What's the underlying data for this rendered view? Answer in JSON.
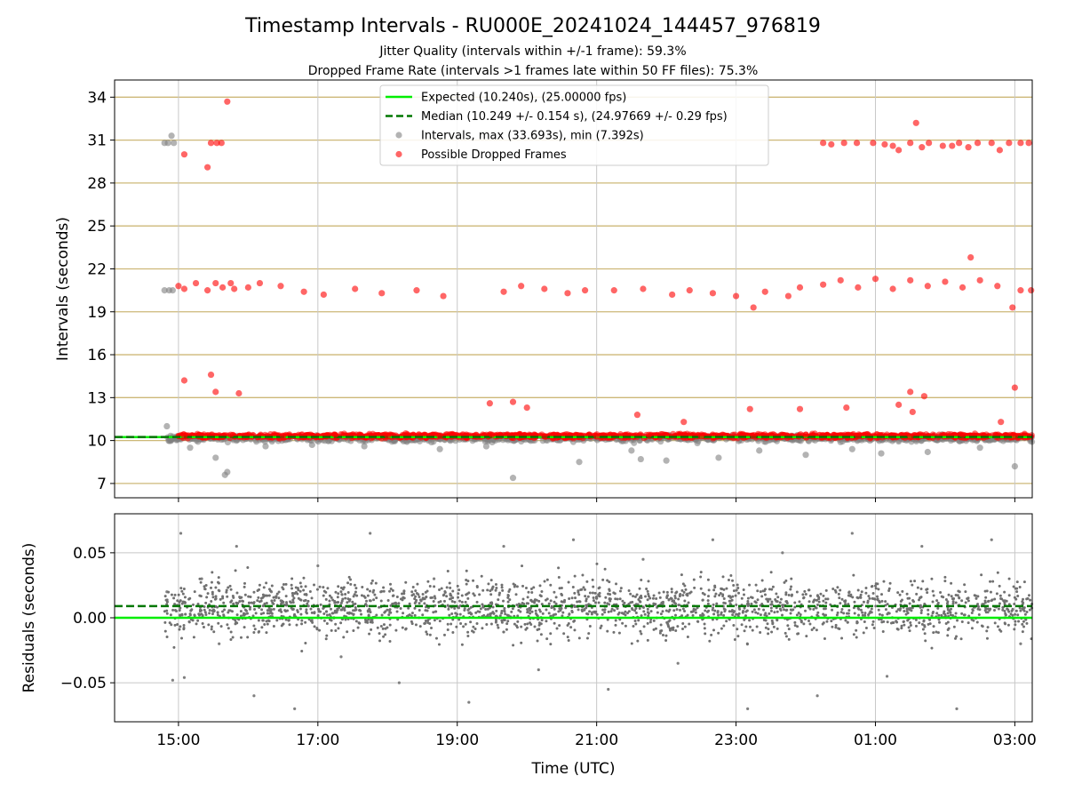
{
  "chart_data": [
    {
      "type": "scatter",
      "title": "Timestamp Intervals - RU000E_20241024_144457_976819",
      "subtitle_lines": [
        "Jitter Quality (intervals within +/-1 frame): 59.3%",
        "Dropped Frame Rate (intervals >1 frames late within 50 FF files): 75.3%"
      ],
      "xlabel": "",
      "ylabel": "Intervals (seconds)",
      "x_axis": "time_utc",
      "xlim": [
        "2024-10-24 14:05",
        "2024-10-25 03:15"
      ],
      "xticks": [
        "2024-10-24 15:00",
        "2024-10-24 17:00",
        "2024-10-24 19:00",
        "2024-10-24 21:00",
        "2024-10-24 23:00",
        "2024-10-25 01:00",
        "2024-10-25 03:00"
      ],
      "ylim": [
        6.0,
        35.2
      ],
      "yticks": [
        7,
        10,
        13,
        16,
        19,
        22,
        25,
        28,
        31,
        34
      ],
      "ytick_labels": [
        "7",
        "10",
        "13",
        "16",
        "19",
        "22",
        "25",
        "28",
        "31",
        "34"
      ],
      "grid": "vertical lines at x ticks, tan horizontal lines at y ticks",
      "legend_placement": "upper-center",
      "reference_lines": [
        {
          "name": "Expected (10.240s), (25.00000 fps)",
          "y": 10.24,
          "style": "solid",
          "color": "#00ee00"
        },
        {
          "name": "Median (10.249 +/- 0.154 s), (24.97669 +/- 0.29 fps)",
          "y": 10.249,
          "style": "dashed",
          "color": "#007700"
        }
      ],
      "series": [
        {
          "name": "Intervals, max (33.693s), min (7.392s)",
          "color": "#808080",
          "points": [
            [
              "2024-10-24 14:48",
              30.8
            ],
            [
              "2024-10-24 14:51",
              30.8
            ],
            [
              "2024-10-24 14:54",
              31.3
            ],
            [
              "2024-10-24 14:56",
              30.8
            ],
            [
              "2024-10-24 14:48",
              20.5
            ],
            [
              "2024-10-24 14:52",
              20.5
            ],
            [
              "2024-10-24 14:55",
              20.5
            ],
            [
              "2024-10-24 14:50",
              11.0
            ],
            [
              "2024-10-24 15:10",
              9.5
            ],
            [
              "2024-10-24 15:32",
              8.8
            ],
            [
              "2024-10-24 15:42",
              7.8
            ],
            [
              "2024-10-24 15:40",
              7.6
            ],
            [
              "2024-10-24 16:15",
              9.6
            ],
            [
              "2024-10-24 16:55",
              9.7
            ],
            [
              "2024-10-24 17:40",
              9.6
            ],
            [
              "2024-10-24 18:45",
              9.4
            ],
            [
              "2024-10-24 19:25",
              9.6
            ],
            [
              "2024-10-24 19:48",
              7.39
            ],
            [
              "2024-10-24 20:45",
              8.5
            ],
            [
              "2024-10-24 21:30",
              9.3
            ],
            [
              "2024-10-24 21:38",
              8.7
            ],
            [
              "2024-10-24 22:00",
              8.6
            ],
            [
              "2024-10-24 22:45",
              8.8
            ],
            [
              "2024-10-24 23:20",
              9.3
            ],
            [
              "2024-10-25 00:00",
              9.0
            ],
            [
              "2024-10-25 00:40",
              9.4
            ],
            [
              "2024-10-25 01:05",
              9.1
            ],
            [
              "2024-10-25 01:45",
              9.2
            ],
            [
              "2024-10-25 02:30",
              9.5
            ],
            [
              "2024-10-25 03:00",
              8.2
            ]
          ]
        },
        {
          "name": "Possible Dropped Frames",
          "color": "#ff0000",
          "points": [
            [
              "2024-10-24 15:05",
              30.0
            ],
            [
              "2024-10-24 15:25",
              29.1
            ],
            [
              "2024-10-24 15:28",
              30.8
            ],
            [
              "2024-10-24 15:33",
              30.8
            ],
            [
              "2024-10-24 15:37",
              30.8
            ],
            [
              "2024-10-24 15:42",
              33.69
            ],
            [
              "2024-10-25 00:15",
              30.8
            ],
            [
              "2024-10-25 00:22",
              30.7
            ],
            [
              "2024-10-25 00:33",
              30.8
            ],
            [
              "2024-10-25 00:44",
              30.8
            ],
            [
              "2024-10-25 00:58",
              30.8
            ],
            [
              "2024-10-25 01:08",
              30.7
            ],
            [
              "2024-10-25 01:15",
              30.6
            ],
            [
              "2024-10-25 01:20",
              30.3
            ],
            [
              "2024-10-25 01:30",
              30.8
            ],
            [
              "2024-10-25 01:40",
              30.5
            ],
            [
              "2024-10-25 01:46",
              30.8
            ],
            [
              "2024-10-25 01:58",
              30.6
            ],
            [
              "2024-10-25 02:06",
              30.6
            ],
            [
              "2024-10-25 02:12",
              30.8
            ],
            [
              "2024-10-25 02:20",
              30.5
            ],
            [
              "2024-10-25 02:28",
              30.8
            ],
            [
              "2024-10-25 02:40",
              30.8
            ],
            [
              "2024-10-25 02:47",
              30.3
            ],
            [
              "2024-10-25 02:55",
              30.8
            ],
            [
              "2024-10-25 03:05",
              30.8
            ],
            [
              "2024-10-25 03:12",
              30.8
            ],
            [
              "2024-10-25 01:35",
              32.2
            ],
            [
              "2024-10-24 15:00",
              20.8
            ],
            [
              "2024-10-24 15:05",
              20.6
            ],
            [
              "2024-10-24 15:15",
              21.0
            ],
            [
              "2024-10-24 15:25",
              20.5
            ],
            [
              "2024-10-24 15:32",
              21.0
            ],
            [
              "2024-10-24 15:38",
              20.7
            ],
            [
              "2024-10-24 15:45",
              21.0
            ],
            [
              "2024-10-24 15:48",
              20.6
            ],
            [
              "2024-10-24 16:00",
              20.7
            ],
            [
              "2024-10-24 16:10",
              21.0
            ],
            [
              "2024-10-24 16:28",
              20.8
            ],
            [
              "2024-10-24 16:48",
              20.4
            ],
            [
              "2024-10-24 17:05",
              20.2
            ],
            [
              "2024-10-24 17:32",
              20.6
            ],
            [
              "2024-10-24 17:55",
              20.3
            ],
            [
              "2024-10-24 18:25",
              20.5
            ],
            [
              "2024-10-24 18:48",
              20.1
            ],
            [
              "2024-10-24 19:40",
              20.4
            ],
            [
              "2024-10-24 19:55",
              20.8
            ],
            [
              "2024-10-24 20:15",
              20.6
            ],
            [
              "2024-10-24 20:35",
              20.3
            ],
            [
              "2024-10-24 20:50",
              20.5
            ],
            [
              "2024-10-24 21:15",
              20.5
            ],
            [
              "2024-10-24 21:40",
              20.6
            ],
            [
              "2024-10-24 22:05",
              20.2
            ],
            [
              "2024-10-24 22:20",
              20.5
            ],
            [
              "2024-10-24 22:40",
              20.3
            ],
            [
              "2024-10-24 23:00",
              20.1
            ],
            [
              "2024-10-24 23:15",
              19.3
            ],
            [
              "2024-10-24 23:25",
              20.4
            ],
            [
              "2024-10-24 23:45",
              20.1
            ],
            [
              "2024-10-24 23:55",
              20.7
            ],
            [
              "2024-10-25 00:15",
              20.9
            ],
            [
              "2024-10-25 00:30",
              21.2
            ],
            [
              "2024-10-25 00:45",
              20.7
            ],
            [
              "2024-10-25 01:00",
              21.3
            ],
            [
              "2024-10-25 01:15",
              20.6
            ],
            [
              "2024-10-25 01:30",
              21.2
            ],
            [
              "2024-10-25 01:45",
              20.8
            ],
            [
              "2024-10-25 02:00",
              21.1
            ],
            [
              "2024-10-25 02:15",
              20.7
            ],
            [
              "2024-10-25 02:22",
              22.8
            ],
            [
              "2024-10-25 02:30",
              21.2
            ],
            [
              "2024-10-25 02:45",
              20.8
            ],
            [
              "2024-10-25 02:58",
              19.3
            ],
            [
              "2024-10-25 03:05",
              20.5
            ],
            [
              "2024-10-25 03:14",
              20.5
            ],
            [
              "2024-10-24 15:05",
              14.2
            ],
            [
              "2024-10-24 15:28",
              14.6
            ],
            [
              "2024-10-24 15:32",
              13.4
            ],
            [
              "2024-10-24 15:52",
              13.3
            ],
            [
              "2024-10-24 19:28",
              12.6
            ],
            [
              "2024-10-24 19:48",
              12.7
            ],
            [
              "2024-10-24 20:00",
              12.3
            ],
            [
              "2024-10-24 21:35",
              11.8
            ],
            [
              "2024-10-24 22:15",
              11.3
            ],
            [
              "2024-10-24 23:12",
              12.2
            ],
            [
              "2024-10-24 23:55",
              12.2
            ],
            [
              "2024-10-25 00:35",
              12.3
            ],
            [
              "2024-10-25 01:20",
              12.5
            ],
            [
              "2024-10-25 01:30",
              13.4
            ],
            [
              "2024-10-25 01:42",
              13.1
            ],
            [
              "2024-10-25 01:32",
              12.0
            ],
            [
              "2024-10-25 02:48",
              11.3
            ],
            [
              "2024-10-25 03:00",
              13.7
            ],
            [
              "2024-10-24 15:05",
              10.3
            ],
            [
              "2024-10-24 15:45",
              10.4
            ],
            [
              "2024-10-24 16:30",
              10.3
            ],
            [
              "2024-10-24 17:15",
              10.4
            ],
            [
              "2024-10-24 18:00",
              10.3
            ],
            [
              "2024-10-24 18:45",
              10.3
            ],
            [
              "2024-10-24 19:30",
              10.4
            ],
            [
              "2024-10-24 20:15",
              10.3
            ],
            [
              "2024-10-24 21:00",
              10.3
            ],
            [
              "2024-10-24 21:45",
              10.4
            ],
            [
              "2024-10-24 22:30",
              10.3
            ],
            [
              "2024-10-24 23:15",
              10.3
            ],
            [
              "2024-10-25 00:00",
              10.4
            ],
            [
              "2024-10-25 00:45",
              10.3
            ],
            [
              "2024-10-25 01:30",
              10.3
            ],
            [
              "2024-10-25 02:15",
              10.4
            ],
            [
              "2024-10-25 03:00",
              10.3
            ]
          ]
        }
      ]
    },
    {
      "type": "scatter",
      "title": "",
      "xlabel": "Time (UTC)",
      "ylabel": "Residuals (seconds)",
      "x_axis": "time_utc",
      "xlim": [
        "2024-10-24 14:05",
        "2024-10-25 03:15"
      ],
      "xticks": [
        "2024-10-24 15:00",
        "2024-10-24 17:00",
        "2024-10-24 19:00",
        "2024-10-24 21:00",
        "2024-10-24 23:00",
        "2024-10-25 01:00",
        "2024-10-25 03:00"
      ],
      "xtick_labels": [
        "15:00",
        "17:00",
        "19:00",
        "21:00",
        "23:00",
        "01:00",
        "03:00"
      ],
      "ylim": [
        -0.08,
        0.08
      ],
      "yticks": [
        -0.05,
        0.0,
        0.05
      ],
      "ytick_labels": [
        "−0.05",
        "0.00",
        "0.05"
      ],
      "grid": "vertical lines at x ticks, gray horizontal lines at y ticks",
      "reference_lines": [
        {
          "y": 0.0,
          "style": "solid",
          "color": "#00ee00"
        },
        {
          "y": 0.009,
          "style": "dashed",
          "color": "#007700"
        }
      ],
      "series": [
        {
          "color": "#808080",
          "points": [
            [
              "2024-10-24 14:50",
              0.02
            ],
            [
              "2024-10-24 14:55",
              -0.048
            ],
            [
              "2024-10-24 15:02",
              0.065
            ],
            [
              "2024-10-24 15:05",
              -0.046
            ],
            [
              "2024-10-24 15:20",
              0.03
            ],
            [
              "2024-10-24 15:35",
              -0.02
            ],
            [
              "2024-10-24 15:50",
              0.055
            ],
            [
              "2024-10-24 16:05",
              -0.06
            ],
            [
              "2024-10-24 16:20",
              0.02
            ],
            [
              "2024-10-24 16:40",
              -0.07
            ],
            [
              "2024-10-24 17:00",
              0.04
            ],
            [
              "2024-10-24 17:20",
              -0.03
            ],
            [
              "2024-10-24 17:45",
              0.065
            ],
            [
              "2024-10-24 18:10",
              -0.05
            ],
            [
              "2024-10-24 18:40",
              0.03
            ],
            [
              "2024-10-24 19:10",
              -0.065
            ],
            [
              "2024-10-24 19:40",
              0.055
            ],
            [
              "2024-10-24 20:10",
              -0.04
            ],
            [
              "2024-10-24 20:40",
              0.06
            ],
            [
              "2024-10-24 21:10",
              -0.055
            ],
            [
              "2024-10-24 21:40",
              0.045
            ],
            [
              "2024-10-24 22:10",
              -0.035
            ],
            [
              "2024-10-24 22:40",
              0.06
            ],
            [
              "2024-10-24 23:10",
              -0.07
            ],
            [
              "2024-10-24 23:40",
              0.05
            ],
            [
              "2024-10-25 00:10",
              -0.06
            ],
            [
              "2024-10-25 00:40",
              0.065
            ],
            [
              "2024-10-25 01:10",
              -0.045
            ],
            [
              "2024-10-25 01:40",
              0.055
            ],
            [
              "2024-10-25 02:10",
              -0.07
            ],
            [
              "2024-10-25 02:40",
              0.06
            ],
            [
              "2024-10-25 03:05",
              -0.02
            ]
          ]
        }
      ]
    }
  ]
}
